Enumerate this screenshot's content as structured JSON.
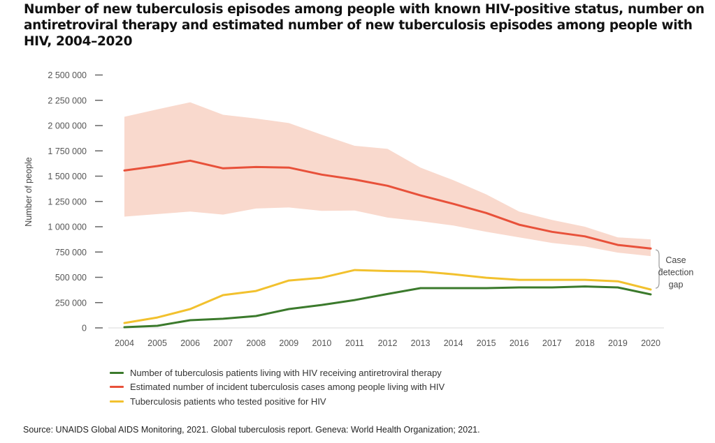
{
  "chart_data": {
    "type": "line",
    "title": "Number of new tuberculosis episodes among people with known HIV-positive status, number on antiretroviral therapy and estimated number of new tuberculosis episodes among people with HIV, 2004–2020",
    "xlabel": "",
    "ylabel": "Number of people",
    "ylim": [
      0,
      2500000
    ],
    "y_ticks": [
      0,
      250000,
      500000,
      750000,
      1000000,
      1250000,
      1500000,
      1750000,
      2000000,
      2250000,
      2500000
    ],
    "y_tick_labels": [
      "0",
      "250 000",
      "500 000",
      "750 000",
      "1 000 000",
      "1 250 000",
      "1 500 000",
      "1 750 000",
      "2 000 000",
      "2 250 000",
      "2 500 000"
    ],
    "x": [
      "2004",
      "2005",
      "2006",
      "2007",
      "2008",
      "2009",
      "2010",
      "2011",
      "2012",
      "2013",
      "2014",
      "2015",
      "2016",
      "2017",
      "2018",
      "2019",
      "2020"
    ],
    "grid": false,
    "legend_position": "bottom-left",
    "series": [
      {
        "name": "Number of tuberculosis patients living with HIV receiving antiretroviral therapy",
        "color": "#3b7a2c",
        "values": [
          7000,
          21000,
          76000,
          90000,
          117000,
          186000,
          227000,
          275000,
          335000,
          393000,
          393000,
          393000,
          400000,
          400000,
          410000,
          400000,
          331000
        ]
      },
      {
        "name": "Estimated number of incident tuberculosis cases among people living with HIV",
        "color": "#e8513a",
        "values": [
          1556000,
          1600000,
          1653000,
          1577000,
          1590000,
          1585000,
          1515000,
          1467000,
          1405000,
          1310000,
          1226000,
          1136000,
          1020000,
          950000,
          905000,
          820000,
          785000
        ],
        "band": {
          "color": "#f9d9cd",
          "lower": [
            1100000,
            1125000,
            1150000,
            1120000,
            1180000,
            1190000,
            1157000,
            1160000,
            1090000,
            1055000,
            1012000,
            950000,
            895000,
            840000,
            805000,
            744000,
            710000
          ],
          "upper": [
            2087000,
            2160000,
            2230000,
            2107000,
            2070000,
            2025000,
            1910000,
            1800000,
            1770000,
            1585000,
            1460000,
            1320000,
            1150000,
            1067000,
            1000000,
            895000,
            875000
          ]
        }
      },
      {
        "name": "Tuberculosis patients who tested positive for HIV",
        "color": "#f2c12e",
        "values": [
          48000,
          103000,
          186000,
          324000,
          365000,
          468000,
          496000,
          572000,
          562000,
          558000,
          530000,
          496000,
          475000,
          475000,
          475000,
          461000,
          379000
        ]
      }
    ],
    "annotations": [
      {
        "text": [
          "Case",
          "detection",
          "gap"
        ],
        "target_year": "2020",
        "between": [
          "Estimated number of incident tuberculosis cases among people living with HIV",
          "Tuberculosis patients who tested positive for HIV"
        ]
      }
    ]
  },
  "source": "Source: UNAIDS Global AIDS Monitoring, 2021. Global tuberculosis report. Geneva: World Health Organization; 2021."
}
